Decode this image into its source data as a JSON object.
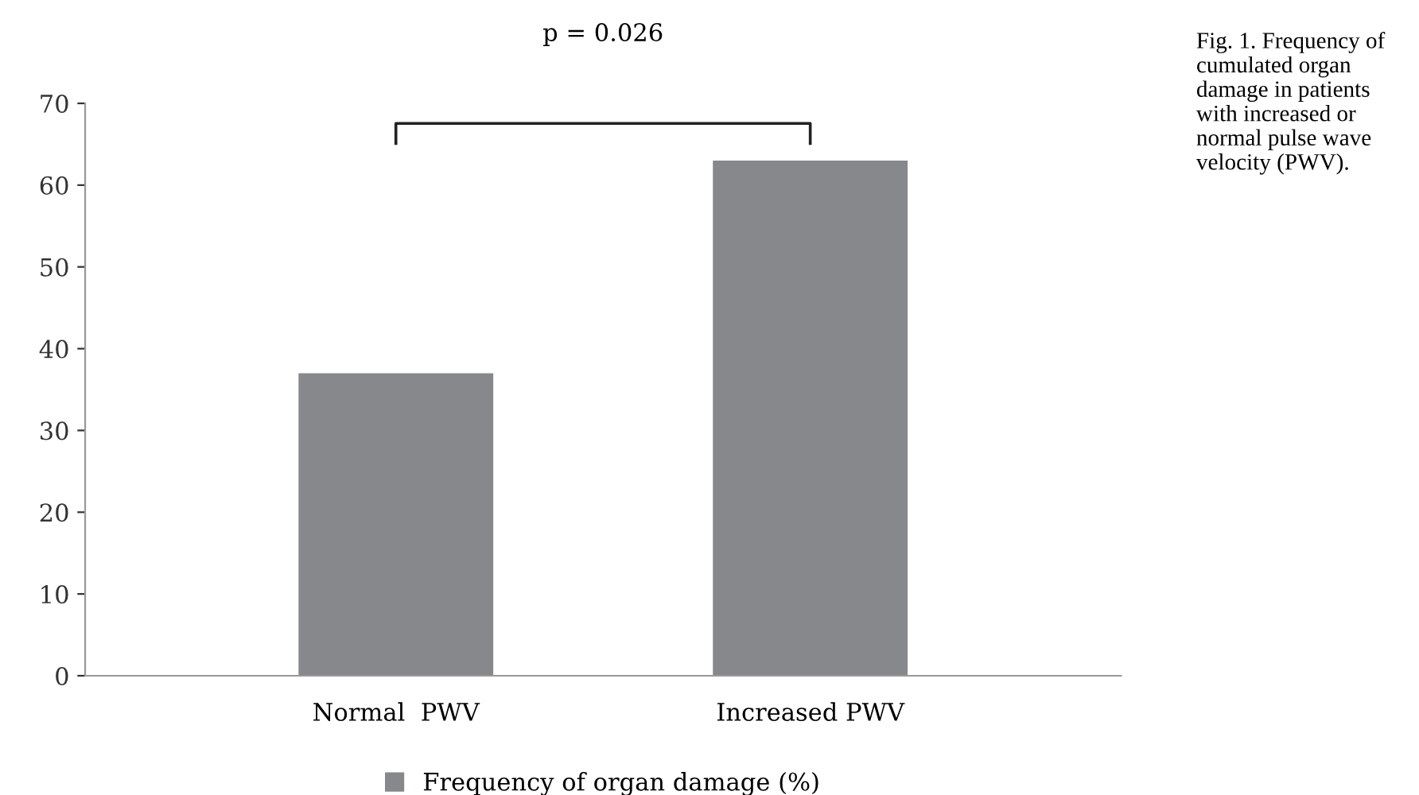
{
  "chart_data": {
    "type": "bar",
    "categories": [
      "Normal  PWV",
      "Increased PWV"
    ],
    "series": [
      {
        "name": "Frequency of organ damage (%)",
        "color": "#87888c",
        "values": [
          37,
          63
        ]
      }
    ],
    "ylim": [
      0,
      70
    ],
    "yticks": [
      0,
      10,
      20,
      30,
      40,
      50,
      60,
      70
    ],
    "grid": false,
    "legend": "bottom",
    "annotations": [
      "p = 0.026",
      "Fig. 1. Frequency of cumulated organ damage in patients with increased or normal pulse wave velocity (PWV)."
    ]
  }
}
